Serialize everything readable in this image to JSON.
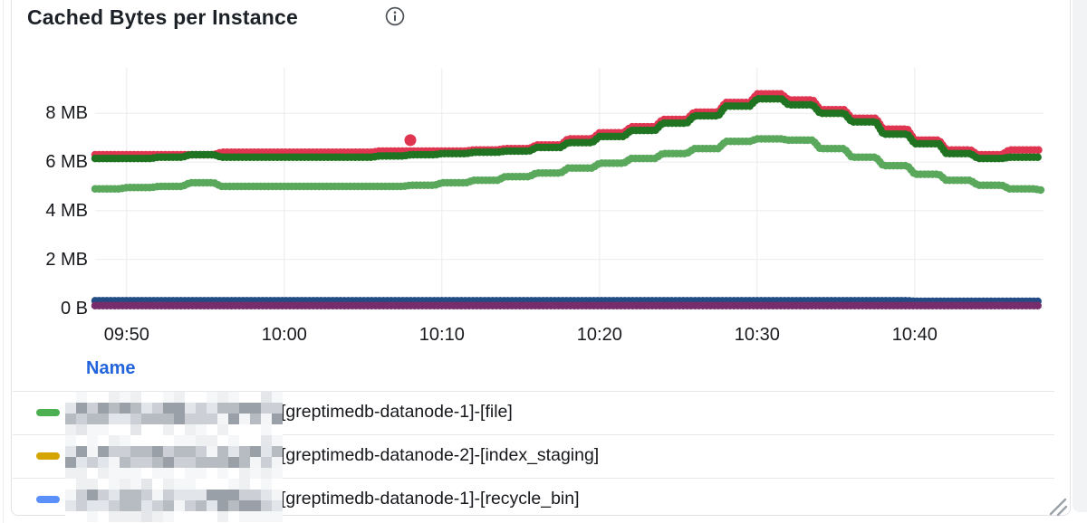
{
  "panel": {
    "title": "Cached Bytes per Instance",
    "info_icon": "info-icon"
  },
  "chart_data": {
    "type": "line",
    "point_style": "dense-dots",
    "title": "Cached Bytes per Instance",
    "xlabel": "",
    "ylabel": "",
    "x_start": "09:48",
    "x_end": "10:48",
    "x_step_minutes": 2,
    "x_ticks": [
      "09:50",
      "10:00",
      "10:10",
      "10:20",
      "10:30",
      "10:40"
    ],
    "y_ticks": [
      {
        "label": "0 B",
        "mb": 0
      },
      {
        "label": "2 MB",
        "mb": 2
      },
      {
        "label": "4 MB",
        "mb": 4
      },
      {
        "label": "6 MB",
        "mb": 6
      },
      {
        "label": "8 MB",
        "mb": 8
      }
    ],
    "ylim_mb": [
      0,
      9.9
    ],
    "grid": true,
    "series": [
      {
        "name": "series-navy-flat",
        "color": "#234c85",
        "values_mb": [
          0.3,
          0.3,
          0.3,
          0.3,
          0.3,
          0.3,
          0.3,
          0.3,
          0.3,
          0.3,
          0.3,
          0.3,
          0.3,
          0.3,
          0.3,
          0.3,
          0.3,
          0.3,
          0.3,
          0.3,
          0.3,
          0.3,
          0.3,
          0.3,
          0.3,
          0.3,
          0.28,
          0.28,
          0.28,
          0.28,
          0.28
        ]
      },
      {
        "name": "series-purple-flat",
        "color": "#772d6b",
        "values_mb": [
          0.1,
          0.1,
          0.1,
          0.1,
          0.1,
          0.1,
          0.1,
          0.1,
          0.1,
          0.1,
          0.1,
          0.1,
          0.1,
          0.1,
          0.1,
          0.1,
          0.1,
          0.1,
          0.1,
          0.1,
          0.1,
          0.1,
          0.1,
          0.1,
          0.1,
          0.1,
          0.1,
          0.1,
          0.1,
          0.1,
          0.1
        ]
      },
      {
        "name": "series-red",
        "color": "#df3550",
        "values_mb": [
          6.3,
          6.3,
          6.3,
          6.3,
          6.4,
          6.4,
          6.4,
          6.4,
          6.4,
          6.45,
          6.45,
          6.45,
          6.5,
          6.55,
          6.7,
          6.95,
          7.2,
          7.45,
          7.75,
          8.05,
          8.45,
          8.8,
          8.55,
          8.15,
          7.8,
          7.35,
          6.9,
          6.5,
          6.3,
          6.5,
          6.5
        ]
      },
      {
        "name": "series-dark-green",
        "color": "#1f7321",
        "values_mb": [
          6.15,
          6.15,
          6.2,
          6.3,
          6.2,
          6.2,
          6.2,
          6.2,
          6.2,
          6.25,
          6.3,
          6.35,
          6.4,
          6.45,
          6.6,
          6.8,
          7.05,
          7.3,
          7.6,
          7.9,
          8.3,
          8.6,
          8.35,
          8.0,
          7.65,
          7.15,
          6.75,
          6.35,
          6.15,
          6.2,
          6.2
        ]
      },
      {
        "name": "series-light-green",
        "color": "#5aa85c",
        "values_mb": [
          4.9,
          4.95,
          5.0,
          5.15,
          5.0,
          5.0,
          5.0,
          5.0,
          5.0,
          5.0,
          5.05,
          5.15,
          5.25,
          5.4,
          5.55,
          5.75,
          5.95,
          6.15,
          6.35,
          6.55,
          6.85,
          6.95,
          6.9,
          6.55,
          6.2,
          5.85,
          5.5,
          5.25,
          5.05,
          4.9,
          4.85
        ]
      }
    ],
    "outlier_point": {
      "series": "series-red",
      "time": "10:08",
      "value_mb": 6.9,
      "color": "#df3550"
    },
    "legend_position": "bottom-table"
  },
  "legend": {
    "header": "Name",
    "rows": [
      {
        "marker_color": "#4caf50",
        "redacted_prefix": true,
        "label": "[greptimedb-datanode-1]-[file]"
      },
      {
        "marker_color": "#d6a400",
        "redacted_prefix": true,
        "label": "[greptimedb-datanode-2]-[index_staging]"
      },
      {
        "marker_color": "#5b8ff9",
        "redacted_prefix": true,
        "label": "[greptimedb-datanode-1]-[recycle_bin]"
      }
    ]
  }
}
